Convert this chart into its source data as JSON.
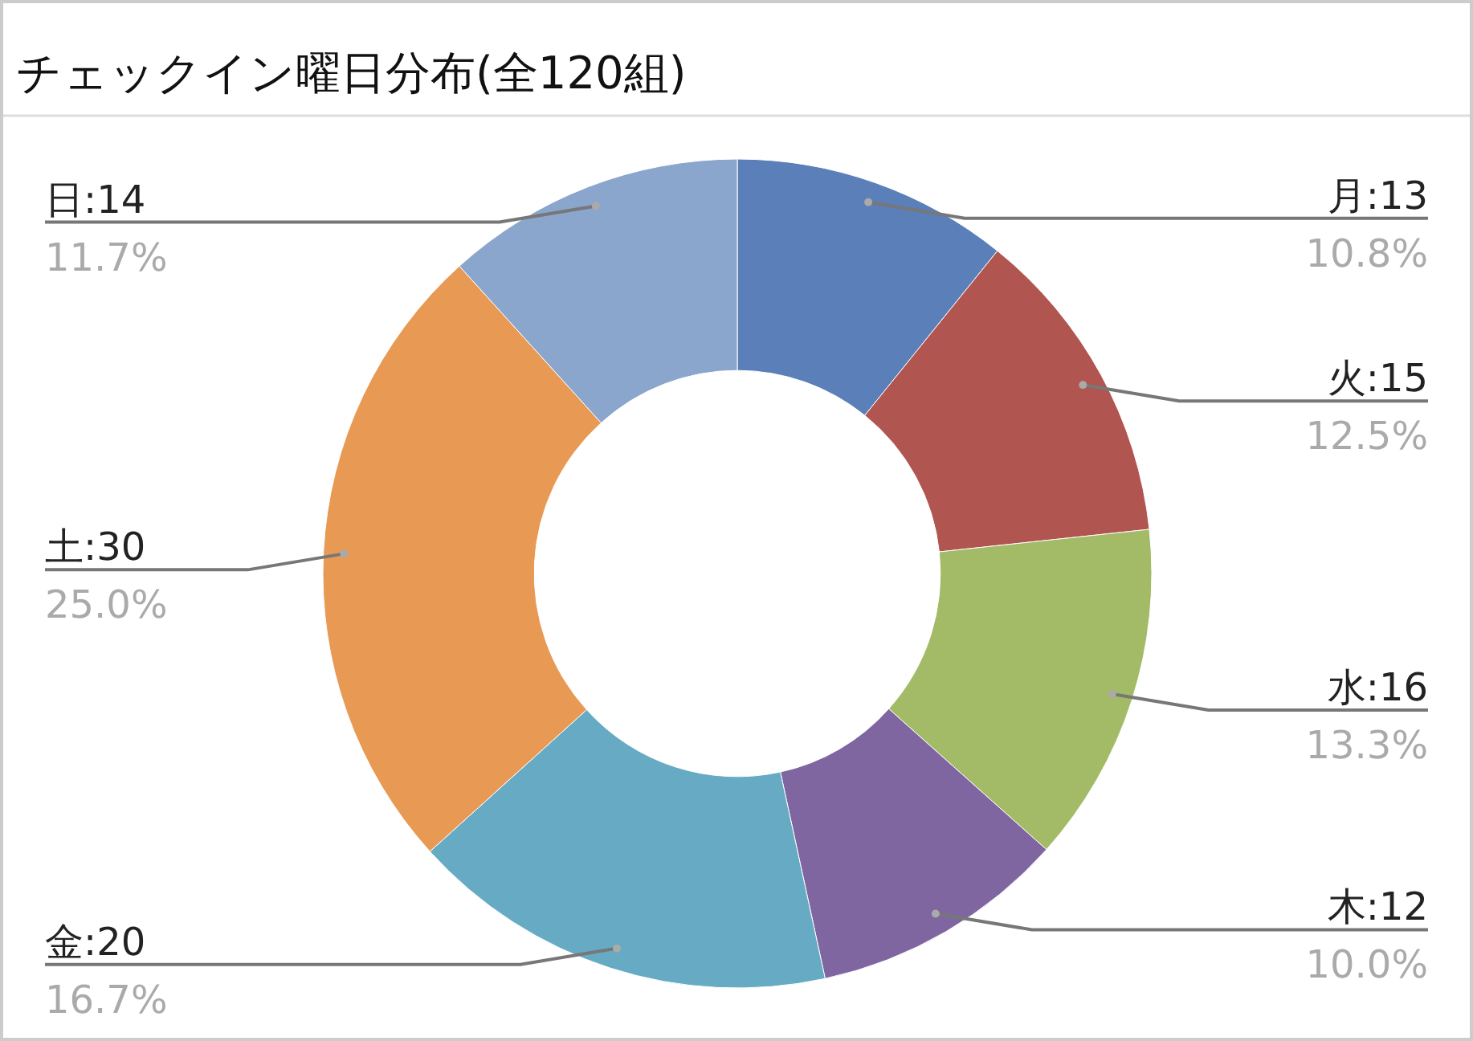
{
  "chart_data": {
    "type": "donut",
    "title": "チェックイン曜日分布(全120組)",
    "categories": [
      "月:13",
      "火:15",
      "水:16",
      "木:12",
      "金:20",
      "土:30",
      "日:14"
    ],
    "values": [
      10.8,
      12.5,
      13.3,
      10.0,
      16.7,
      25.0,
      11.7
    ],
    "colors": [
      "#5b7fb8",
      "#b05550",
      "#a3bb66",
      "#7f66a0",
      "#66aac4",
      "#e89a55",
      "#8aa6cc"
    ],
    "value_labels": [
      "10.8%",
      "12.5%",
      "13.3%",
      "10.0%",
      "16.7%",
      "25.0%",
      "11.7%"
    ]
  }
}
